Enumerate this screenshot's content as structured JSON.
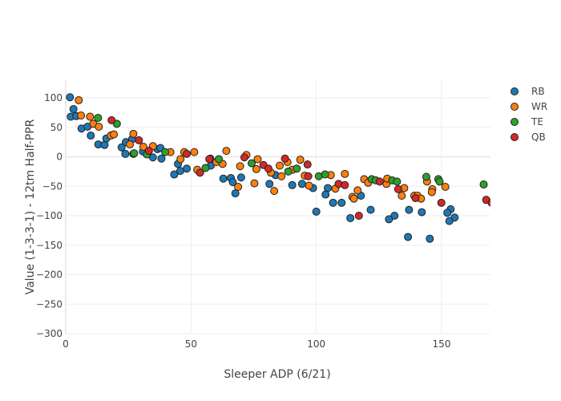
{
  "chart_data": {
    "type": "scatter",
    "title": "",
    "xlabel": "Sleeper ADP (6/21)",
    "ylabel": "Value (1-3-3-1) - 12tm Half-PPR",
    "xlim": [
      0,
      170
    ],
    "ylim": [
      -300,
      130
    ],
    "xticks": [
      0,
      50,
      100,
      150
    ],
    "yticks": [
      100,
      50,
      0,
      -50,
      -100,
      -150,
      -200,
      -250,
      -300
    ],
    "grid": true,
    "legend_position": "top-right",
    "series": [
      {
        "name": "RB",
        "color": "#1f77b4",
        "points": [
          [
            1.7,
            101
          ],
          [
            3.1,
            81
          ],
          [
            2,
            68
          ],
          [
            4.2,
            69
          ],
          [
            6.3,
            48
          ],
          [
            8.7,
            51
          ],
          [
            10,
            36
          ],
          [
            13,
            21
          ],
          [
            15.5,
            20
          ],
          [
            16.2,
            31
          ],
          [
            22.3,
            16
          ],
          [
            24,
            25
          ],
          [
            26.5,
            30
          ],
          [
            23.8,
            5
          ],
          [
            30.8,
            9
          ],
          [
            34.8,
            -1
          ],
          [
            36.6,
            13
          ],
          [
            37.8,
            15
          ],
          [
            38.2,
            -3
          ],
          [
            44.8,
            -12
          ],
          [
            48.3,
            -20
          ],
          [
            45.7,
            -24
          ],
          [
            43.3,
            -30
          ],
          [
            57.9,
            -15
          ],
          [
            62.9,
            -37
          ],
          [
            65.9,
            -36
          ],
          [
            66.7,
            -43
          ],
          [
            70,
            -35
          ],
          [
            67.7,
            -62
          ],
          [
            81.3,
            -46
          ],
          [
            83.7,
            -31
          ],
          [
            90.4,
            -48
          ],
          [
            94.3,
            -46
          ],
          [
            98.7,
            -53
          ],
          [
            104.6,
            -53
          ],
          [
            103.7,
            -64
          ],
          [
            106.7,
            -78
          ],
          [
            110.1,
            -78
          ],
          [
            117.8,
            -66
          ],
          [
            100,
            -93
          ],
          [
            113.6,
            -104
          ],
          [
            121.7,
            -90
          ],
          [
            131.2,
            -100
          ],
          [
            129,
            -106
          ],
          [
            137,
            -90
          ],
          [
            142.1,
            -94
          ],
          [
            153.6,
            -89
          ],
          [
            152.3,
            -95
          ],
          [
            155.2,
            -103
          ],
          [
            153.1,
            -109
          ],
          [
            136.6,
            -136
          ],
          [
            145.3,
            -139
          ]
        ]
      },
      {
        "name": "WR",
        "color": "#ff7f0e",
        "points": [
          [
            5.2,
            96
          ],
          [
            6.1,
            70
          ],
          [
            9.7,
            68
          ],
          [
            11,
            56
          ],
          [
            13.2,
            51
          ],
          [
            18,
            36
          ],
          [
            19.2,
            38
          ],
          [
            25.6,
            21
          ],
          [
            27,
            39
          ],
          [
            31,
            17
          ],
          [
            34.8,
            18
          ],
          [
            41.8,
            8
          ],
          [
            47.3,
            8
          ],
          [
            51.3,
            8
          ],
          [
            45.8,
            -4
          ],
          [
            52.5,
            -22
          ],
          [
            64.1,
            10
          ],
          [
            60.1,
            -9
          ],
          [
            62.6,
            -12
          ],
          [
            72.1,
            3
          ],
          [
            76.6,
            -4
          ],
          [
            69.6,
            -16
          ],
          [
            76.1,
            -21
          ],
          [
            68.8,
            -51
          ],
          [
            75.3,
            -45
          ],
          [
            81.9,
            -27
          ],
          [
            86.1,
            -33
          ],
          [
            85.4,
            -15
          ],
          [
            88.5,
            -9
          ],
          [
            90.4,
            -22
          ],
          [
            93.6,
            -5
          ],
          [
            95.4,
            -32
          ],
          [
            105.8,
            -31
          ],
          [
            83.2,
            -58
          ],
          [
            97.1,
            -49
          ],
          [
            111.4,
            -29
          ],
          [
            107.6,
            -54
          ],
          [
            116.5,
            -57
          ],
          [
            114.4,
            -68
          ],
          [
            115,
            -71
          ],
          [
            119.1,
            -38
          ],
          [
            120.7,
            -44
          ],
          [
            128,
            -46
          ],
          [
            128.3,
            -37
          ],
          [
            135.1,
            -53
          ],
          [
            134.1,
            -66
          ],
          [
            144.2,
            -42
          ],
          [
            151.5,
            -51
          ],
          [
            146.3,
            -55
          ],
          [
            146.1,
            -60
          ],
          [
            139.1,
            -66
          ],
          [
            140.4,
            -66
          ],
          [
            141.8,
            -71
          ]
        ]
      },
      {
        "name": "TE",
        "color": "#2ca02c",
        "points": [
          [
            12.9,
            66
          ],
          [
            20.4,
            56
          ],
          [
            27,
            5
          ],
          [
            27.3,
            6
          ],
          [
            32.4,
            4
          ],
          [
            39.7,
            8
          ],
          [
            55.8,
            -19
          ],
          [
            61.1,
            -4
          ],
          [
            74.2,
            -11
          ],
          [
            88.8,
            -25
          ],
          [
            92.2,
            -20
          ],
          [
            101,
            -33
          ],
          [
            103.5,
            -30
          ],
          [
            122.1,
            -38
          ],
          [
            123.7,
            -40
          ],
          [
            130.3,
            -40
          ],
          [
            132.2,
            -42
          ],
          [
            143.9,
            -34
          ],
          [
            148.7,
            -38
          ],
          [
            149.2,
            -42
          ],
          [
            166.8,
            -47
          ]
        ]
      },
      {
        "name": "QB",
        "color": "#d62728",
        "points": [
          [
            18.3,
            62
          ],
          [
            29.2,
            28
          ],
          [
            33.2,
            10
          ],
          [
            48.3,
            5
          ],
          [
            53.6,
            -27
          ],
          [
            57.7,
            -3
          ],
          [
            57.3,
            -4
          ],
          [
            71.3,
            -1
          ],
          [
            78.9,
            -14
          ],
          [
            80.9,
            -20
          ],
          [
            87.5,
            -3
          ],
          [
            96.5,
            -13
          ],
          [
            96.8,
            -33
          ],
          [
            108.9,
            -46
          ],
          [
            111.4,
            -48
          ],
          [
            117,
            -100
          ],
          [
            125.3,
            -42
          ],
          [
            132.7,
            -55
          ],
          [
            139.6,
            -70
          ],
          [
            149.9,
            -78
          ],
          [
            167.8,
            -73
          ],
          [
            170,
            -78
          ]
        ]
      }
    ]
  }
}
